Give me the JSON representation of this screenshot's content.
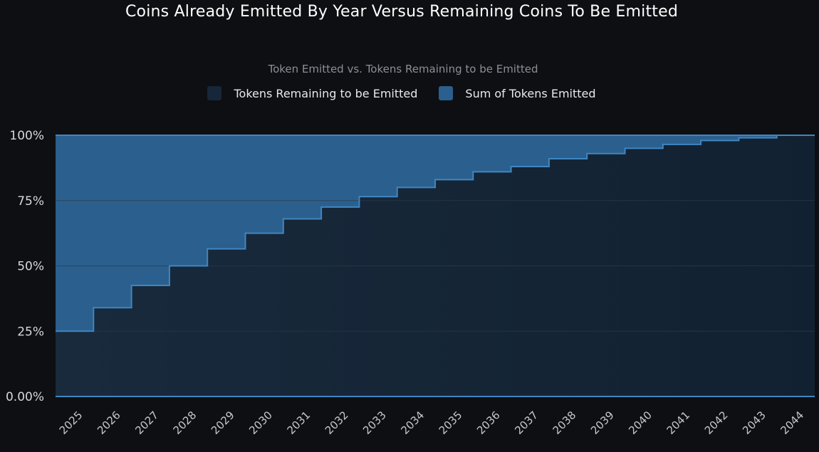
{
  "chart_data": {
    "type": "area",
    "title": "Coins Already Emitted By Year Versus Remaining Coins To Be Emitted",
    "subtitle": "Token Emitted vs. Tokens Remaining to be Emitted",
    "step": true,
    "stacked_percent": true,
    "x": [
      "2025",
      "2026",
      "2027",
      "2028",
      "2029",
      "2030",
      "2031",
      "2032",
      "2033",
      "2034",
      "2035",
      "2036",
      "2037",
      "2038",
      "2039",
      "2040",
      "2041",
      "2042",
      "2043",
      "2044"
    ],
    "series": [
      {
        "name": "Tokens Remaining to be Emitted",
        "color": "#16273a",
        "values": [
          75,
          66,
          57.5,
          50,
          43.5,
          37.5,
          32,
          27.5,
          23.5,
          20,
          17,
          14,
          12,
          9,
          7,
          5,
          3.5,
          2,
          1,
          0
        ]
      },
      {
        "name": "Sum of Tokens Emitted",
        "color": "#2b5f8d",
        "values": [
          25,
          34,
          42.5,
          50,
          56.5,
          62.5,
          68,
          72.5,
          76.5,
          80,
          83,
          86,
          88,
          91,
          93,
          95,
          96.5,
          98,
          99,
          100
        ]
      }
    ],
    "y_ticks": [
      "0.00%",
      "25%",
      "50%",
      "75%",
      "100%"
    ],
    "y_tick_values": [
      0,
      25,
      50,
      75,
      100
    ],
    "ylim": [
      0,
      100
    ],
    "grid": true,
    "legend_position": "top-center"
  }
}
